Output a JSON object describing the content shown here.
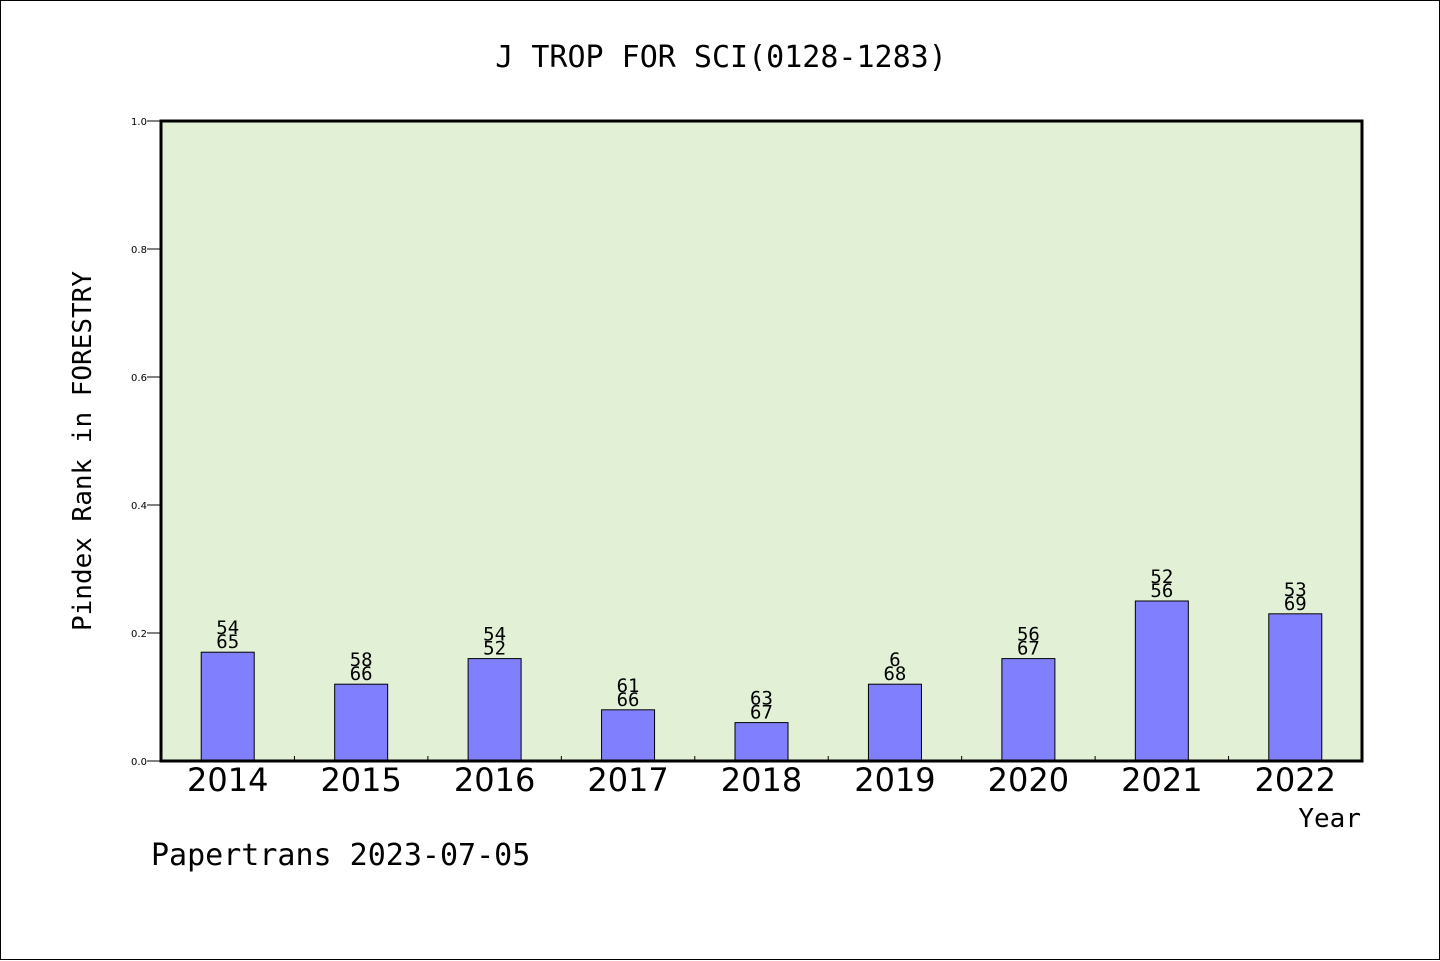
{
  "chart_data": {
    "type": "bar",
    "title": "J TROP FOR SCI(0128-1283)",
    "xlabel": "Year",
    "ylabel": "Pindex Rank in FORESTRY",
    "categories": [
      "2014",
      "2015",
      "2016",
      "2017",
      "2018",
      "2019",
      "2020",
      "2021",
      "2022"
    ],
    "values": [
      0.17,
      0.12,
      0.16,
      0.08,
      0.06,
      0.12,
      0.16,
      0.25,
      0.23
    ],
    "labels_top": [
      "54",
      "58",
      "54",
      "61",
      "63",
      "6",
      "56",
      "52",
      "53"
    ],
    "labels_bottom": [
      "65",
      "66",
      "52",
      "66",
      "67",
      "68",
      "67",
      "56",
      "69"
    ],
    "ylim": [
      0,
      1.0
    ],
    "yticks": [
      "0.0",
      "0.2",
      "0.4",
      "0.6",
      "0.8",
      "1.0"
    ],
    "grid": false,
    "legend": "none",
    "bar_color": "#8080ff",
    "plot_background": "#e2f0d6"
  },
  "footer": {
    "credit": "Papertrans 2023-07-05"
  }
}
